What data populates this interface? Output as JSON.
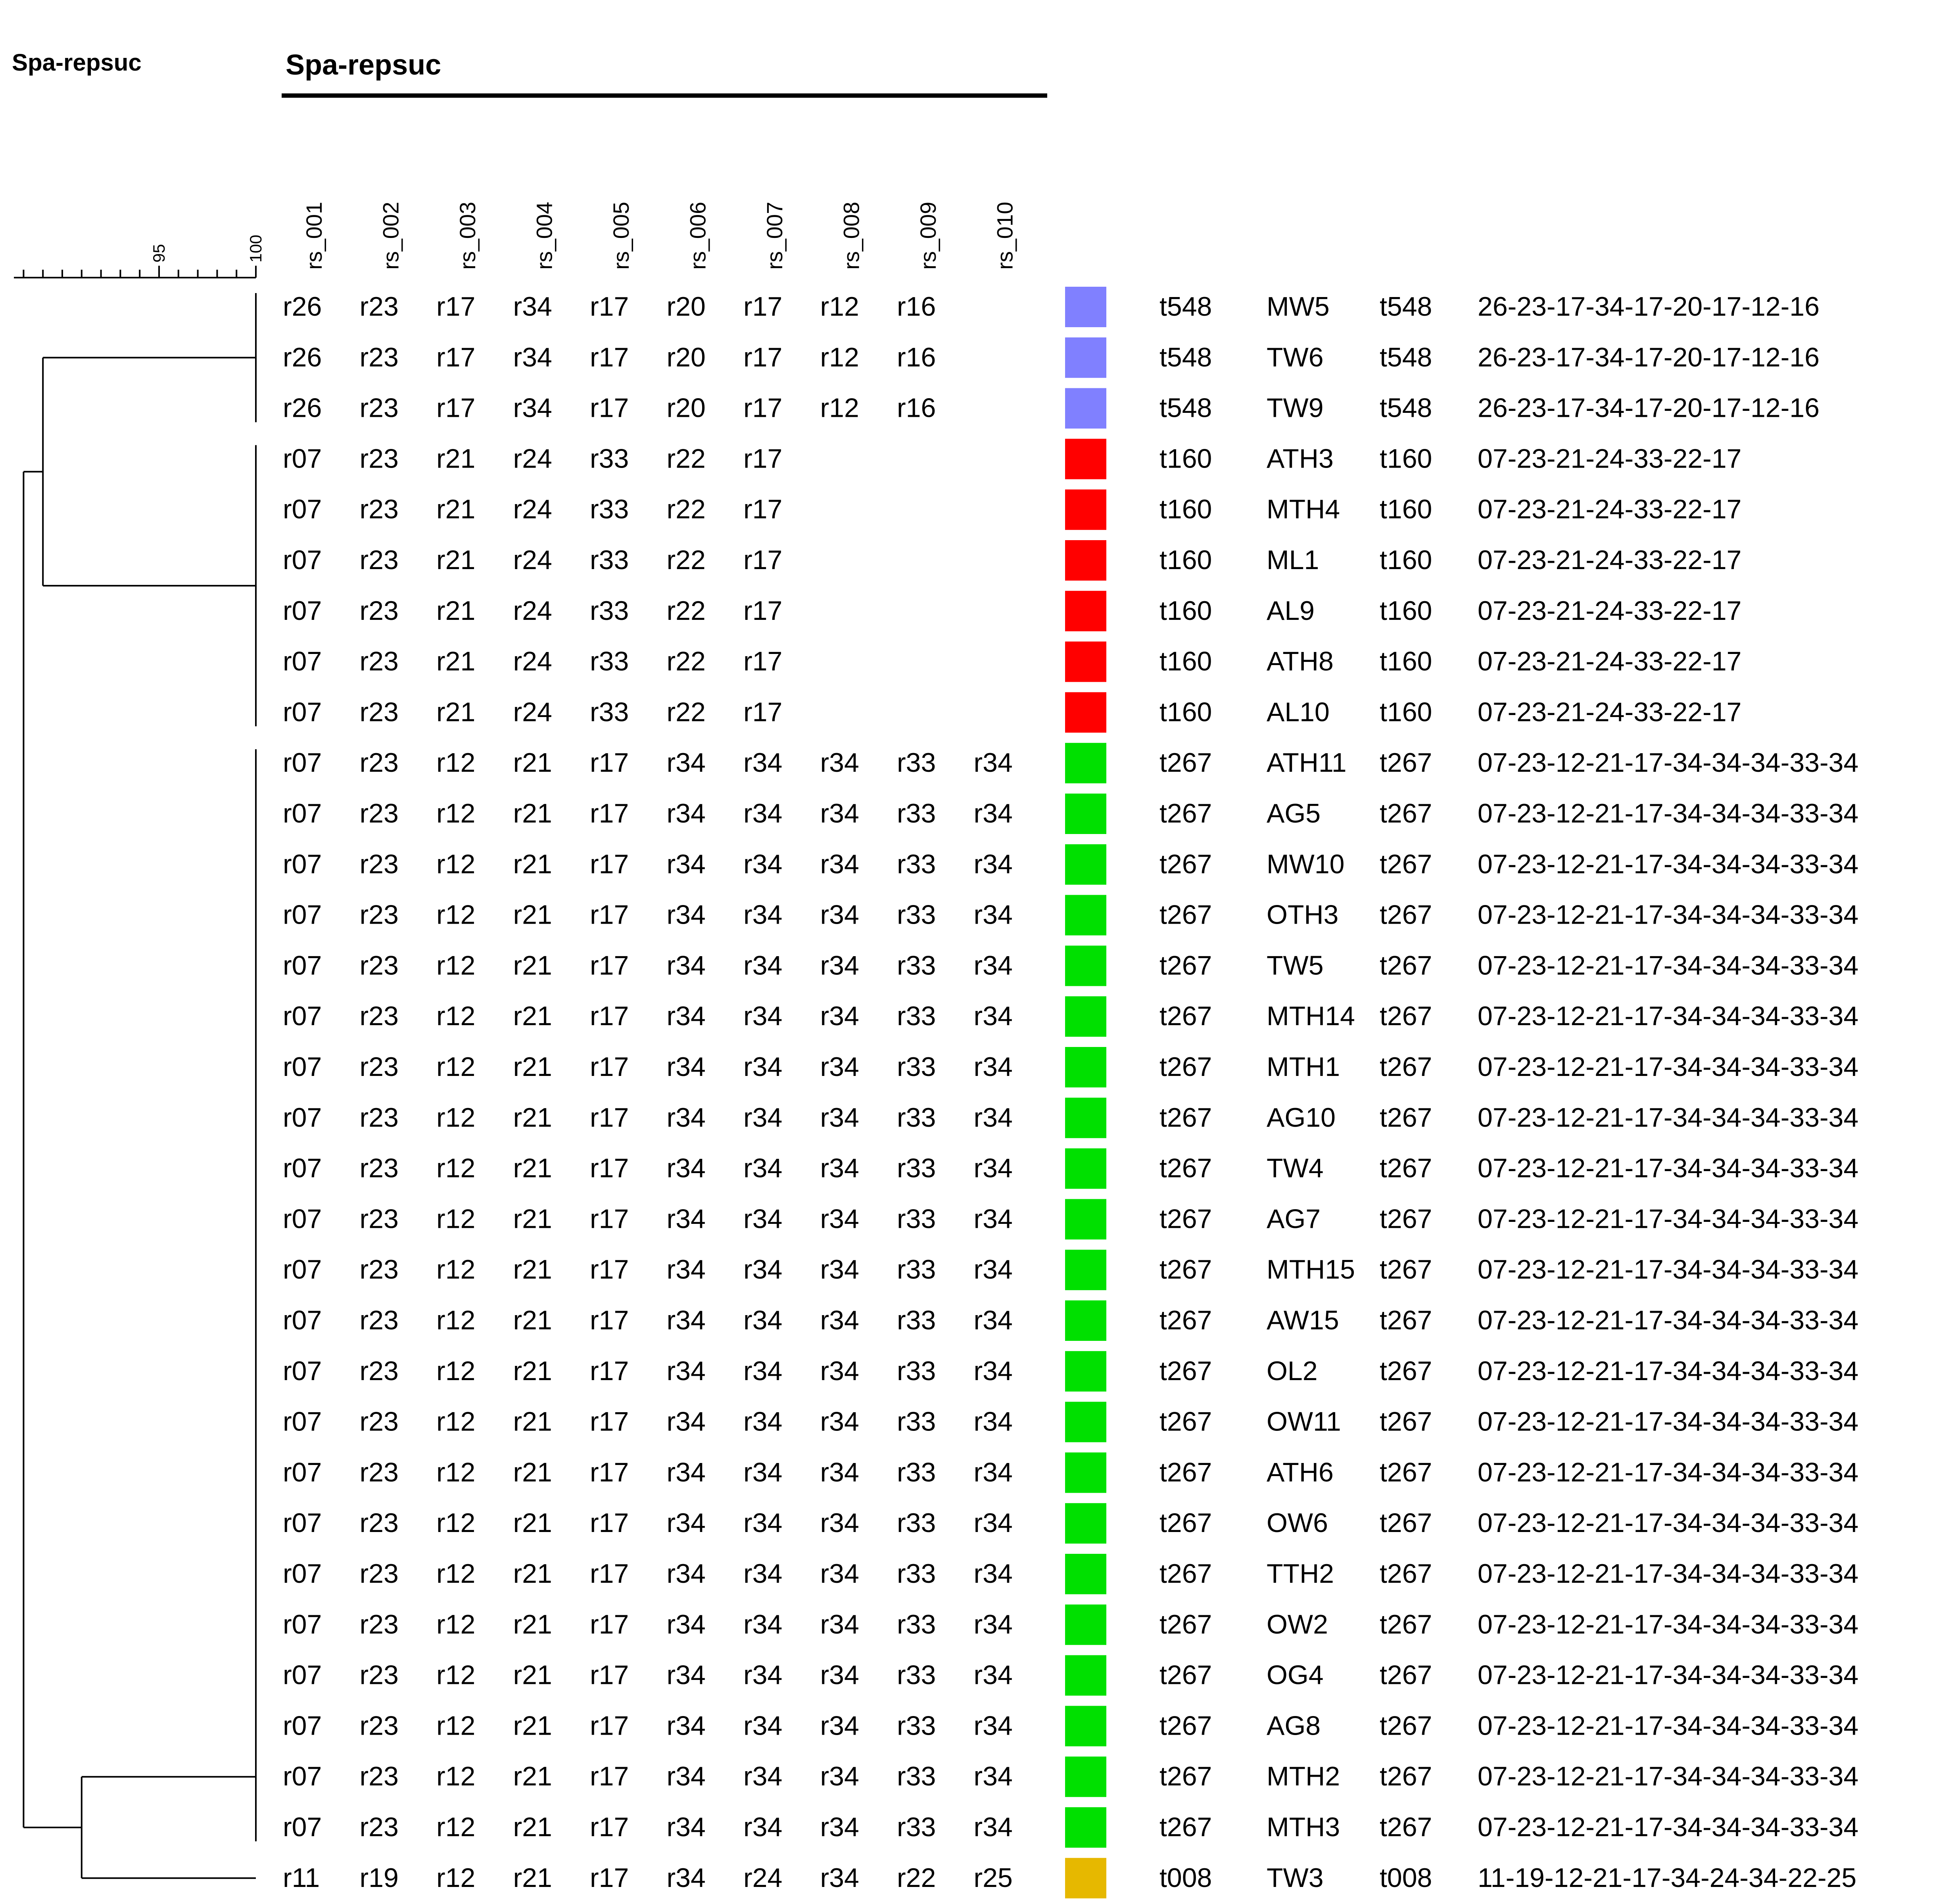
{
  "left_title": "Spa-repsuc",
  "top_title": "Spa-repsuc",
  "scale": {
    "min": 87.5,
    "max": 100,
    "minor_step": 1,
    "tick_labels": [
      {
        "value": 95,
        "text": "95"
      },
      {
        "value": 100,
        "text": "100"
      }
    ]
  },
  "columns": [
    "rs_001",
    "rs_002",
    "rs_003",
    "rs_004",
    "rs_005",
    "rs_006",
    "rs_007",
    "rs_008",
    "rs_009",
    "rs_010"
  ],
  "colors": {
    "t548": "#8080ff",
    "t160": "#ff0000",
    "t267": "#00e000",
    "t008": "#e6b800"
  },
  "groups": [
    {
      "name": "t548",
      "start": 0,
      "end": 2
    },
    {
      "name": "t160",
      "start": 3,
      "end": 8
    },
    {
      "name": "t267",
      "start": 9,
      "end": 30
    },
    {
      "name": "t008",
      "start": 31,
      "end": 31
    }
  ],
  "dendrogram": {
    "root_similarity": 88,
    "t548_t160_join": 89,
    "t267_t008_join": 91
  },
  "rows": [
    {
      "repeats": [
        "r26",
        "r23",
        "r17",
        "r34",
        "r17",
        "r20",
        "r17",
        "r12",
        "r16"
      ],
      "spa_type": "t548",
      "strain": "MW5",
      "type2": "t548",
      "code": "26-23-17-34-17-20-17-12-16"
    },
    {
      "repeats": [
        "r26",
        "r23",
        "r17",
        "r34",
        "r17",
        "r20",
        "r17",
        "r12",
        "r16"
      ],
      "spa_type": "t548",
      "strain": "TW6",
      "type2": "t548",
      "code": "26-23-17-34-17-20-17-12-16"
    },
    {
      "repeats": [
        "r26",
        "r23",
        "r17",
        "r34",
        "r17",
        "r20",
        "r17",
        "r12",
        "r16"
      ],
      "spa_type": "t548",
      "strain": "TW9",
      "type2": "t548",
      "code": "26-23-17-34-17-20-17-12-16"
    },
    {
      "repeats": [
        "r07",
        "r23",
        "r21",
        "r24",
        "r33",
        "r22",
        "r17"
      ],
      "spa_type": "t160",
      "strain": "ATH3",
      "type2": "t160",
      "code": "07-23-21-24-33-22-17"
    },
    {
      "repeats": [
        "r07",
        "r23",
        "r21",
        "r24",
        "r33",
        "r22",
        "r17"
      ],
      "spa_type": "t160",
      "strain": "MTH4",
      "type2": "t160",
      "code": "07-23-21-24-33-22-17"
    },
    {
      "repeats": [
        "r07",
        "r23",
        "r21",
        "r24",
        "r33",
        "r22",
        "r17"
      ],
      "spa_type": "t160",
      "strain": "ML1",
      "type2": "t160",
      "code": "07-23-21-24-33-22-17"
    },
    {
      "repeats": [
        "r07",
        "r23",
        "r21",
        "r24",
        "r33",
        "r22",
        "r17"
      ],
      "spa_type": "t160",
      "strain": "AL9",
      "type2": "t160",
      "code": "07-23-21-24-33-22-17"
    },
    {
      "repeats": [
        "r07",
        "r23",
        "r21",
        "r24",
        "r33",
        "r22",
        "r17"
      ],
      "spa_type": "t160",
      "strain": "ATH8",
      "type2": "t160",
      "code": "07-23-21-24-33-22-17"
    },
    {
      "repeats": [
        "r07",
        "r23",
        "r21",
        "r24",
        "r33",
        "r22",
        "r17"
      ],
      "spa_type": "t160",
      "strain": "AL10",
      "type2": "t160",
      "code": "07-23-21-24-33-22-17"
    },
    {
      "repeats": [
        "r07",
        "r23",
        "r12",
        "r21",
        "r17",
        "r34",
        "r34",
        "r34",
        "r33",
        "r34"
      ],
      "spa_type": "t267",
      "strain": "ATH11",
      "type2": "t267",
      "code": "07-23-12-21-17-34-34-34-33-34"
    },
    {
      "repeats": [
        "r07",
        "r23",
        "r12",
        "r21",
        "r17",
        "r34",
        "r34",
        "r34",
        "r33",
        "r34"
      ],
      "spa_type": "t267",
      "strain": "AG5",
      "type2": "t267",
      "code": "07-23-12-21-17-34-34-34-33-34"
    },
    {
      "repeats": [
        "r07",
        "r23",
        "r12",
        "r21",
        "r17",
        "r34",
        "r34",
        "r34",
        "r33",
        "r34"
      ],
      "spa_type": "t267",
      "strain": "MW10",
      "type2": "t267",
      "code": "07-23-12-21-17-34-34-34-33-34"
    },
    {
      "repeats": [
        "r07",
        "r23",
        "r12",
        "r21",
        "r17",
        "r34",
        "r34",
        "r34",
        "r33",
        "r34"
      ],
      "spa_type": "t267",
      "strain": "OTH3",
      "type2": "t267",
      "code": "07-23-12-21-17-34-34-34-33-34"
    },
    {
      "repeats": [
        "r07",
        "r23",
        "r12",
        "r21",
        "r17",
        "r34",
        "r34",
        "r34",
        "r33",
        "r34"
      ],
      "spa_type": "t267",
      "strain": "TW5",
      "type2": "t267",
      "code": "07-23-12-21-17-34-34-34-33-34"
    },
    {
      "repeats": [
        "r07",
        "r23",
        "r12",
        "r21",
        "r17",
        "r34",
        "r34",
        "r34",
        "r33",
        "r34"
      ],
      "spa_type": "t267",
      "strain": "MTH14",
      "type2": "t267",
      "code": "07-23-12-21-17-34-34-34-33-34"
    },
    {
      "repeats": [
        "r07",
        "r23",
        "r12",
        "r21",
        "r17",
        "r34",
        "r34",
        "r34",
        "r33",
        "r34"
      ],
      "spa_type": "t267",
      "strain": "MTH1",
      "type2": "t267",
      "code": "07-23-12-21-17-34-34-34-33-34"
    },
    {
      "repeats": [
        "r07",
        "r23",
        "r12",
        "r21",
        "r17",
        "r34",
        "r34",
        "r34",
        "r33",
        "r34"
      ],
      "spa_type": "t267",
      "strain": "AG10",
      "type2": "t267",
      "code": "07-23-12-21-17-34-34-34-33-34"
    },
    {
      "repeats": [
        "r07",
        "r23",
        "r12",
        "r21",
        "r17",
        "r34",
        "r34",
        "r34",
        "r33",
        "r34"
      ],
      "spa_type": "t267",
      "strain": "TW4",
      "type2": "t267",
      "code": "07-23-12-21-17-34-34-34-33-34"
    },
    {
      "repeats": [
        "r07",
        "r23",
        "r12",
        "r21",
        "r17",
        "r34",
        "r34",
        "r34",
        "r33",
        "r34"
      ],
      "spa_type": "t267",
      "strain": "AG7",
      "type2": "t267",
      "code": "07-23-12-21-17-34-34-34-33-34"
    },
    {
      "repeats": [
        "r07",
        "r23",
        "r12",
        "r21",
        "r17",
        "r34",
        "r34",
        "r34",
        "r33",
        "r34"
      ],
      "spa_type": "t267",
      "strain": "MTH15",
      "type2": "t267",
      "code": "07-23-12-21-17-34-34-34-33-34"
    },
    {
      "repeats": [
        "r07",
        "r23",
        "r12",
        "r21",
        "r17",
        "r34",
        "r34",
        "r34",
        "r33",
        "r34"
      ],
      "spa_type": "t267",
      "strain": "AW15",
      "type2": "t267",
      "code": "07-23-12-21-17-34-34-34-33-34"
    },
    {
      "repeats": [
        "r07",
        "r23",
        "r12",
        "r21",
        "r17",
        "r34",
        "r34",
        "r34",
        "r33",
        "r34"
      ],
      "spa_type": "t267",
      "strain": "OL2",
      "type2": "t267",
      "code": "07-23-12-21-17-34-34-34-33-34"
    },
    {
      "repeats": [
        "r07",
        "r23",
        "r12",
        "r21",
        "r17",
        "r34",
        "r34",
        "r34",
        "r33",
        "r34"
      ],
      "spa_type": "t267",
      "strain": "OW11",
      "type2": "t267",
      "code": "07-23-12-21-17-34-34-34-33-34"
    },
    {
      "repeats": [
        "r07",
        "r23",
        "r12",
        "r21",
        "r17",
        "r34",
        "r34",
        "r34",
        "r33",
        "r34"
      ],
      "spa_type": "t267",
      "strain": "ATH6",
      "type2": "t267",
      "code": "07-23-12-21-17-34-34-34-33-34"
    },
    {
      "repeats": [
        "r07",
        "r23",
        "r12",
        "r21",
        "r17",
        "r34",
        "r34",
        "r34",
        "r33",
        "r34"
      ],
      "spa_type": "t267",
      "strain": "OW6",
      "type2": "t267",
      "code": "07-23-12-21-17-34-34-34-33-34"
    },
    {
      "repeats": [
        "r07",
        "r23",
        "r12",
        "r21",
        "r17",
        "r34",
        "r34",
        "r34",
        "r33",
        "r34"
      ],
      "spa_type": "t267",
      "strain": "TTH2",
      "type2": "t267",
      "code": "07-23-12-21-17-34-34-34-33-34"
    },
    {
      "repeats": [
        "r07",
        "r23",
        "r12",
        "r21",
        "r17",
        "r34",
        "r34",
        "r34",
        "r33",
        "r34"
      ],
      "spa_type": "t267",
      "strain": "OW2",
      "type2": "t267",
      "code": "07-23-12-21-17-34-34-34-33-34"
    },
    {
      "repeats": [
        "r07",
        "r23",
        "r12",
        "r21",
        "r17",
        "r34",
        "r34",
        "r34",
        "r33",
        "r34"
      ],
      "spa_type": "t267",
      "strain": "OG4",
      "type2": "t267",
      "code": "07-23-12-21-17-34-34-34-33-34"
    },
    {
      "repeats": [
        "r07",
        "r23",
        "r12",
        "r21",
        "r17",
        "r34",
        "r34",
        "r34",
        "r33",
        "r34"
      ],
      "spa_type": "t267",
      "strain": "AG8",
      "type2": "t267",
      "code": "07-23-12-21-17-34-34-34-33-34"
    },
    {
      "repeats": [
        "r07",
        "r23",
        "r12",
        "r21",
        "r17",
        "r34",
        "r34",
        "r34",
        "r33",
        "r34"
      ],
      "spa_type": "t267",
      "strain": "MTH2",
      "type2": "t267",
      "code": "07-23-12-21-17-34-34-34-33-34"
    },
    {
      "repeats": [
        "r07",
        "r23",
        "r12",
        "r21",
        "r17",
        "r34",
        "r34",
        "r34",
        "r33",
        "r34"
      ],
      "spa_type": "t267",
      "strain": "MTH3",
      "type2": "t267",
      "code": "07-23-12-21-17-34-34-34-33-34"
    },
    {
      "repeats": [
        "r11",
        "r19",
        "r12",
        "r21",
        "r17",
        "r34",
        "r24",
        "r34",
        "r22",
        "r25"
      ],
      "spa_type": "t008",
      "strain": "TW3",
      "type2": "t008",
      "code": "11-19-12-21-17-34-24-34-22-25"
    }
  ]
}
